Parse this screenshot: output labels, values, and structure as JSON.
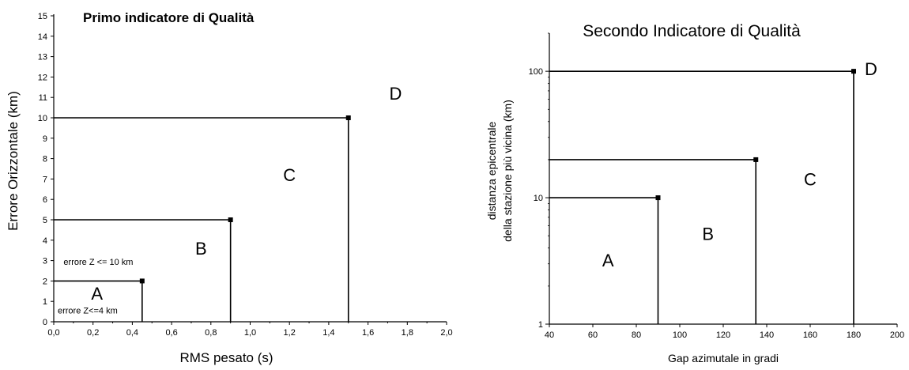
{
  "chart_data": [
    {
      "type": "line",
      "title": "Primo indicatore di Qualità",
      "xlabel": "RMS pesato (s)",
      "ylabel": "Errore Orizzontale (km)",
      "xlim": [
        0.0,
        2.0
      ],
      "ylim": [
        0,
        15
      ],
      "x_ticks": [
        "0,0",
        "0,2",
        "0,4",
        "0,6",
        "0,8",
        "1,0",
        "1,2",
        "1,4",
        "1,6",
        "1,8",
        "2,0"
      ],
      "y_ticks": [
        "0",
        "1",
        "2",
        "3",
        "4",
        "5",
        "6",
        "7",
        "8",
        "9",
        "10",
        "11",
        "12",
        "13",
        "14",
        "15"
      ],
      "series": [
        {
          "points": [
            [
              0.0,
              2
            ],
            [
              0.45,
              2
            ],
            [
              0.45,
              0
            ]
          ]
        },
        {
          "points": [
            [
              0.0,
              5
            ],
            [
              0.9,
              5
            ],
            [
              0.9,
              0
            ]
          ]
        },
        {
          "points": [
            [
              0.0,
              10
            ],
            [
              1.5,
              10
            ],
            [
              1.5,
              0
            ]
          ]
        }
      ],
      "zones": [
        {
          "label": "A",
          "x": 0.22,
          "y": 1.4
        },
        {
          "label": "B",
          "x": 0.75,
          "y": 3.6
        },
        {
          "label": "C",
          "x": 1.2,
          "y": 7.2
        },
        {
          "label": "D",
          "x": 1.74,
          "y": 11.2
        }
      ],
      "notes": [
        {
          "text": "errore Z <= 10 km",
          "x": 0.05,
          "y": 2.8
        },
        {
          "text": "errore Z<=4 km",
          "x": 0.02,
          "y": 0.4
        }
      ],
      "grid": false
    },
    {
      "type": "line",
      "title": "Secondo Indicatore di Qualità",
      "xlabel": "Gap azimutale in gradi",
      "ylabel_lines": [
        "distanza epicentrale",
        "della stazione più vicina  (km)"
      ],
      "xlim": [
        40,
        200
      ],
      "ylim": [
        1,
        200
      ],
      "y_scale": "log",
      "x_ticks": [
        "40",
        "60",
        "80",
        "100",
        "120",
        "140",
        "160",
        "180",
        "200"
      ],
      "y_ticks": [
        {
          "value": 1,
          "label": "1"
        },
        {
          "value": 10,
          "label": "10"
        },
        {
          "value": 100,
          "label": "100"
        }
      ],
      "series": [
        {
          "points": [
            [
              40,
              10
            ],
            [
              90,
              10
            ],
            [
              90,
              1
            ]
          ]
        },
        {
          "points": [
            [
              40,
              20
            ],
            [
              135,
              20
            ],
            [
              135,
              1
            ]
          ]
        },
        {
          "points": [
            [
              40,
              100
            ],
            [
              180,
              100
            ],
            [
              180,
              1
            ]
          ]
        }
      ],
      "zones": [
        {
          "label": "A",
          "x": 67,
          "y": 3.2
        },
        {
          "label": "B",
          "x": 113,
          "y": 5.2
        },
        {
          "label": "C",
          "x": 160,
          "y": 14
        },
        {
          "label": "D",
          "x": 188,
          "y": 105
        }
      ],
      "grid": false
    }
  ]
}
